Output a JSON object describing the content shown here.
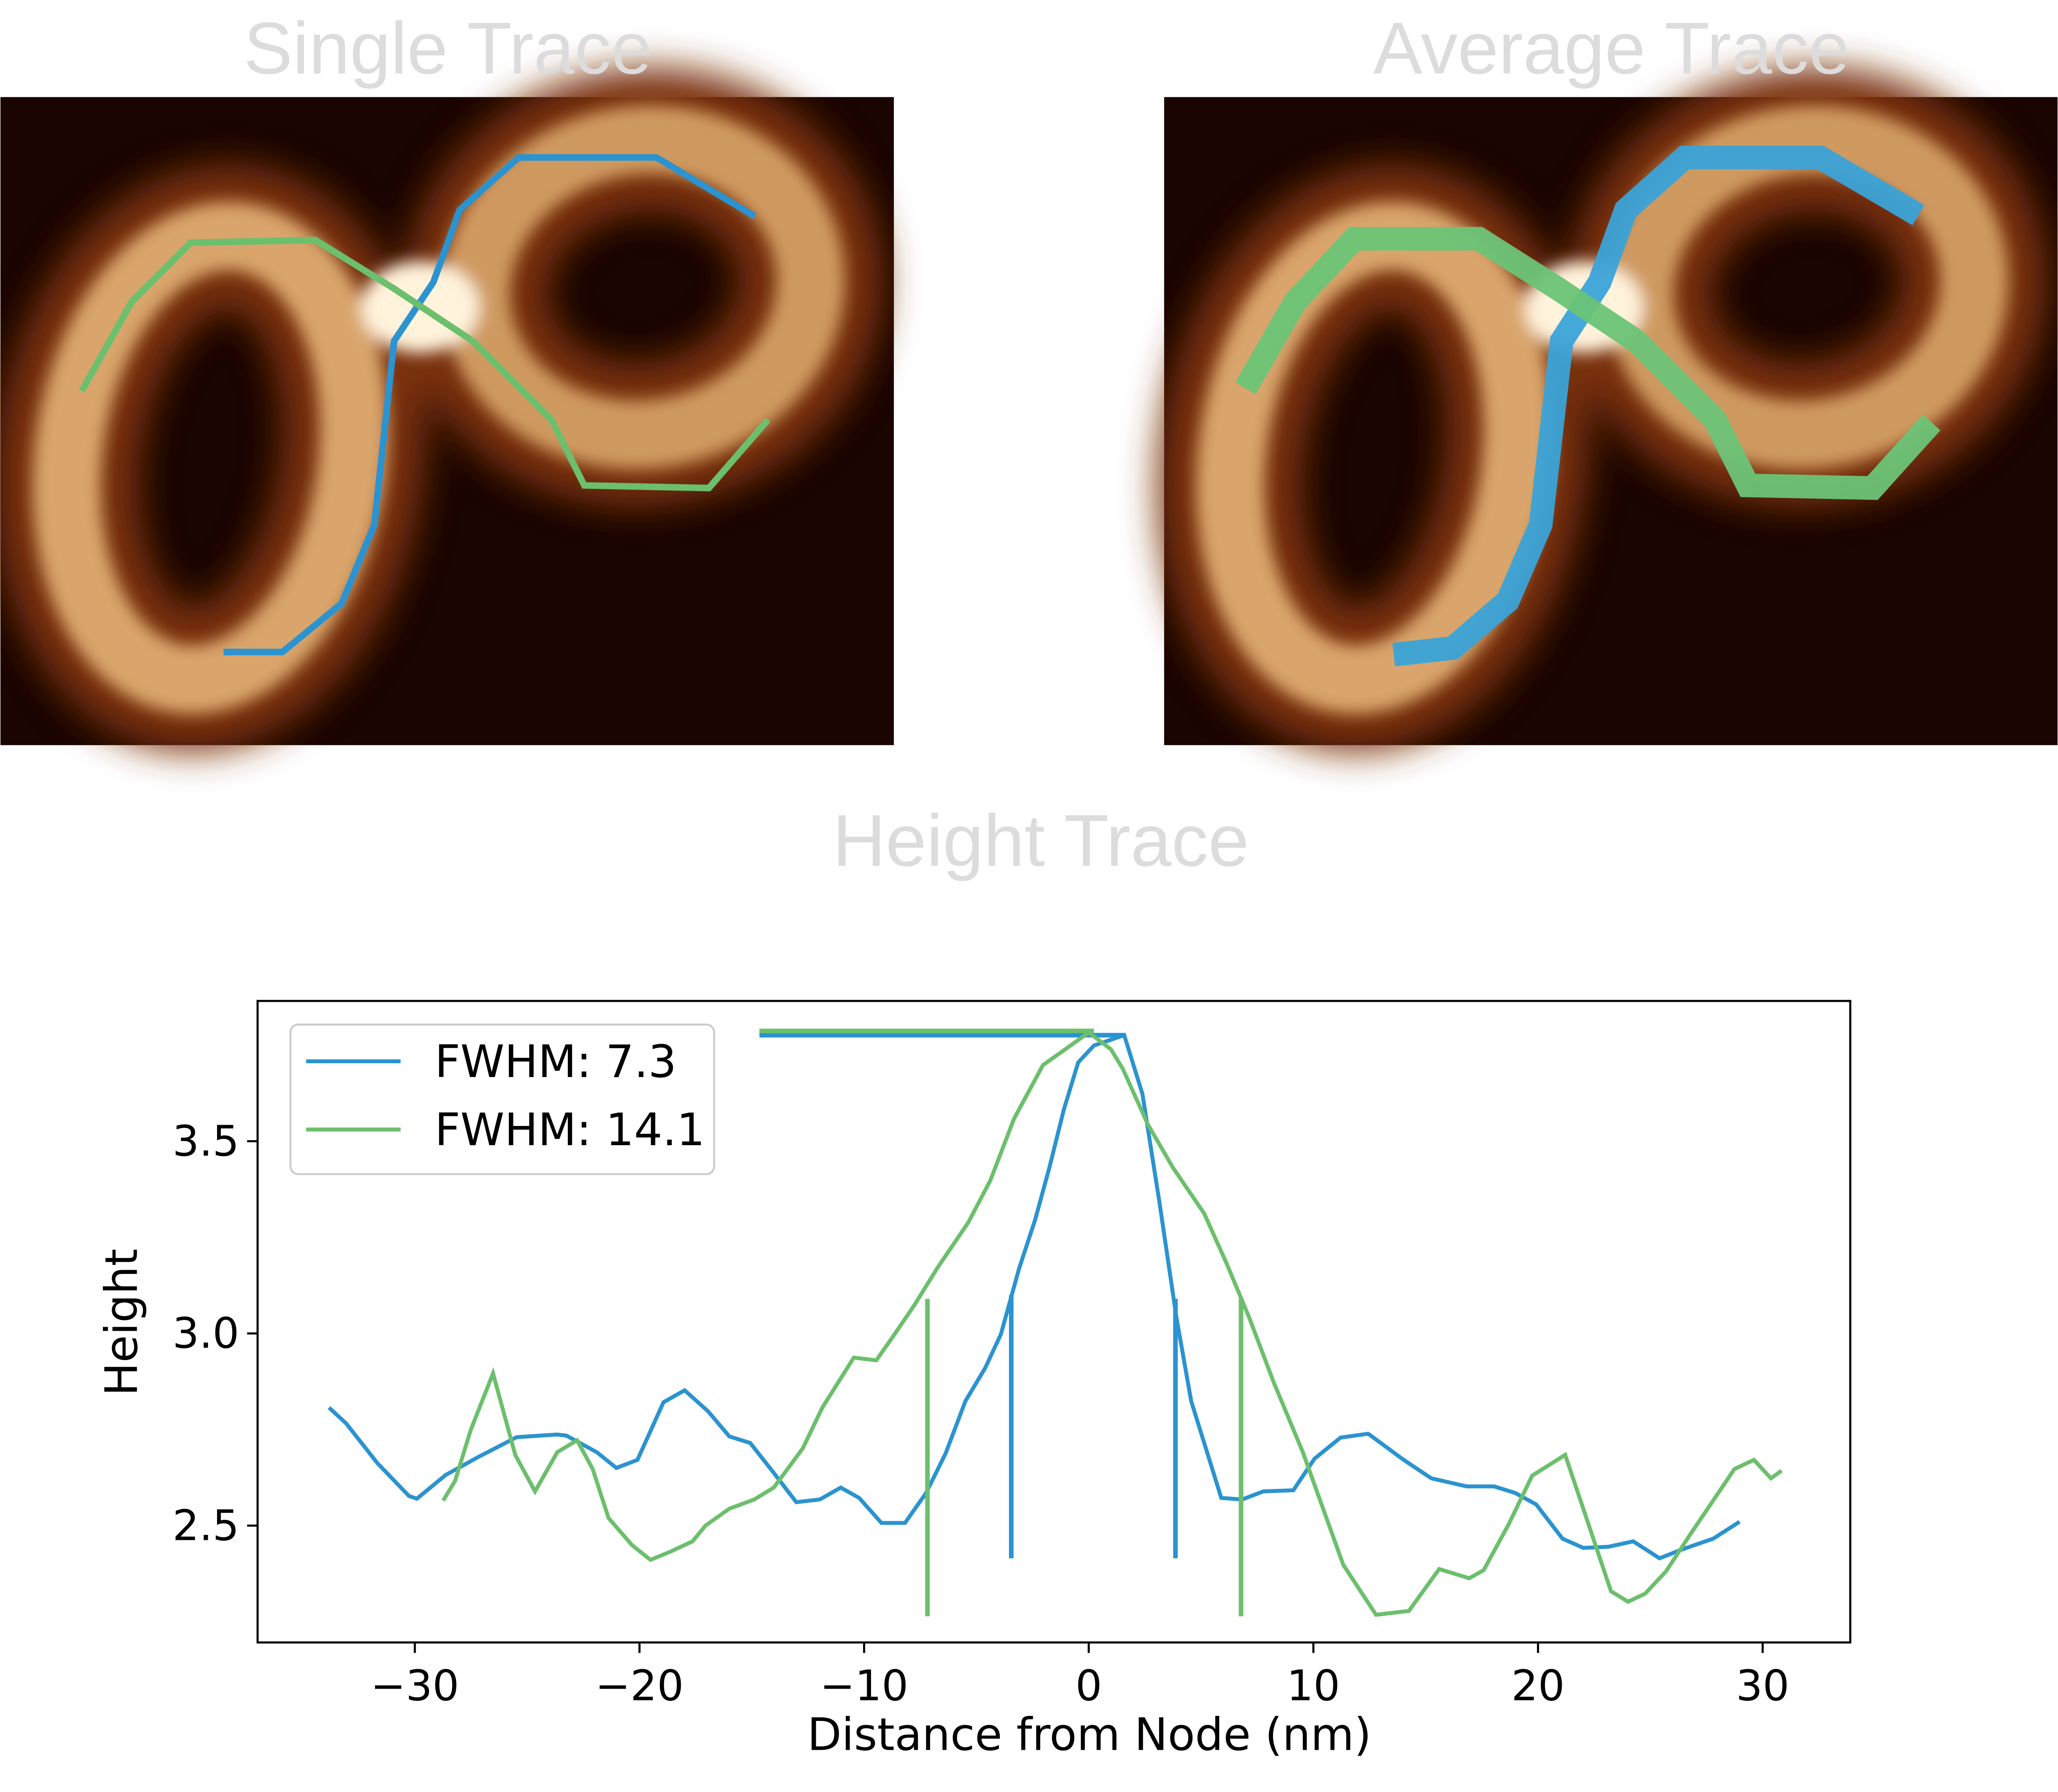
{
  "panels": [
    {
      "title": "Single Trace"
    },
    {
      "title": "Average Trace"
    }
  ],
  "chart_data": {
    "type": "line",
    "title": "Height Trace",
    "x_label": "Distance from Node (nm)",
    "y_label": "Height",
    "xlim": [
      -37.0,
      33.9
    ],
    "ylim": [
      2.196,
      3.865
    ],
    "xticks": [
      {
        "value": -30,
        "label": "−30"
      },
      {
        "value": -20,
        "label": "−20"
      },
      {
        "value": -10,
        "label": "−10"
      },
      0,
      10,
      20,
      30
    ],
    "yticks": [
      2.5,
      {
        "value": 3,
        "label": "3.0"
      },
      3.5
    ],
    "legend": "upper left",
    "grid": false,
    "series": [
      {
        "name": "FWHM: 7.3",
        "color": "#2b93d0",
        "x": [
          -33.82,
          -33.06,
          -31.66,
          -30.26,
          -29.91,
          -28.62,
          -27.16,
          -25.47,
          -23.66,
          -23.25,
          -21.9,
          -21.03,
          -20.09,
          -18.93,
          -17.99,
          -16.94,
          -16.0,
          -15.07,
          -14.02,
          -13.02,
          -11.97,
          -11.04,
          -10.22,
          -9.23,
          -8.18,
          -7.24,
          -6.37,
          -5.49,
          -4.61,
          -3.91,
          -3.1,
          -2.39,
          -1.75,
          -1.11,
          -0.47,
          0.23,
          1.58,
          2.39,
          3.15,
          3.91,
          4.56,
          5.9,
          6.83,
          7.77,
          9.11,
          10.05,
          11.21,
          12.44,
          14.02,
          15.25,
          16.82,
          18.05,
          18.98,
          19.92,
          21.09,
          22.02,
          23.13,
          24.24,
          25.41,
          26.46,
          27.8,
          28.97
        ],
        "values": [
          2.807,
          2.766,
          2.662,
          2.577,
          2.57,
          2.632,
          2.679,
          2.73,
          2.737,
          2.734,
          2.691,
          2.65,
          2.671,
          2.821,
          2.852,
          2.797,
          2.732,
          2.715,
          2.637,
          2.561,
          2.568,
          2.599,
          2.572,
          2.507,
          2.507,
          2.585,
          2.688,
          2.824,
          2.91,
          2.998,
          3.169,
          3.295,
          3.432,
          3.582,
          3.705,
          3.749,
          3.776,
          3.623,
          3.34,
          3.039,
          2.824,
          2.572,
          2.568,
          2.589,
          2.592,
          2.674,
          2.729,
          2.739,
          2.671,
          2.623,
          2.602,
          2.602,
          2.585,
          2.555,
          2.466,
          2.442,
          2.445,
          2.459,
          2.415,
          2.439,
          2.466,
          2.51
        ],
        "fwhm": {
          "hline": {
            "x": [
              -14.66,
              1.58
            ],
            "y": 3.776
          },
          "vlines": [
            {
              "x": -3.45,
              "y": [
                2.415,
                3.1
              ]
            },
            {
              "x": 3.86,
              "y": [
                2.415,
                3.09
              ]
            }
          ]
        }
      },
      {
        "name": "FWHM: 14.1",
        "color": "#6cbf6c",
        "x": [
          -28.74,
          -28.21,
          -27.51,
          -26.52,
          -25.53,
          -24.65,
          -23.66,
          -22.78,
          -22.08,
          -21.38,
          -20.33,
          -19.51,
          -18.63,
          -17.64,
          -17.06,
          -16.0,
          -14.89,
          -14.02,
          -12.73,
          -11.86,
          -10.46,
          -9.46,
          -8.76,
          -7.77,
          -6.72,
          -5.37,
          -4.38,
          -3.33,
          -2.04,
          -1.05,
          0,
          0.99,
          1.52,
          2.63,
          3.74,
          5.14,
          6.13,
          7.13,
          8.24,
          9.53,
          11.33,
          12.79,
          14.25,
          15.6,
          16.94,
          17.58,
          18.69,
          19.74,
          21.21,
          23.25,
          24.01,
          24.77,
          25.7,
          26.81,
          27.75,
          28.74,
          29.61,
          30.37,
          30.84
        ],
        "values": [
          2.565,
          2.616,
          2.749,
          2.896,
          2.684,
          2.589,
          2.691,
          2.722,
          2.647,
          2.52,
          2.449,
          2.411,
          2.432,
          2.459,
          2.5,
          2.544,
          2.568,
          2.599,
          2.701,
          2.807,
          2.937,
          2.93,
          2.988,
          3.073,
          3.172,
          3.288,
          3.398,
          3.558,
          3.698,
          3.739,
          3.783,
          3.739,
          3.688,
          3.544,
          3.432,
          3.312,
          3.183,
          3.043,
          2.872,
          2.691,
          2.398,
          2.268,
          2.278,
          2.387,
          2.363,
          2.384,
          2.503,
          2.63,
          2.684,
          2.329,
          2.302,
          2.323,
          2.381,
          2.48,
          2.561,
          2.647,
          2.671,
          2.623,
          2.643
        ],
        "fwhm": {
          "hline": {
            "x": [
              -14.66,
              0.23
            ],
            "y": 3.787
          },
          "vlines": [
            {
              "x": -7.18,
              "y": [
                2.264,
                3.09
              ]
            },
            {
              "x": 6.78,
              "y": [
                2.264,
                3.09
              ]
            }
          ]
        }
      }
    ]
  }
}
